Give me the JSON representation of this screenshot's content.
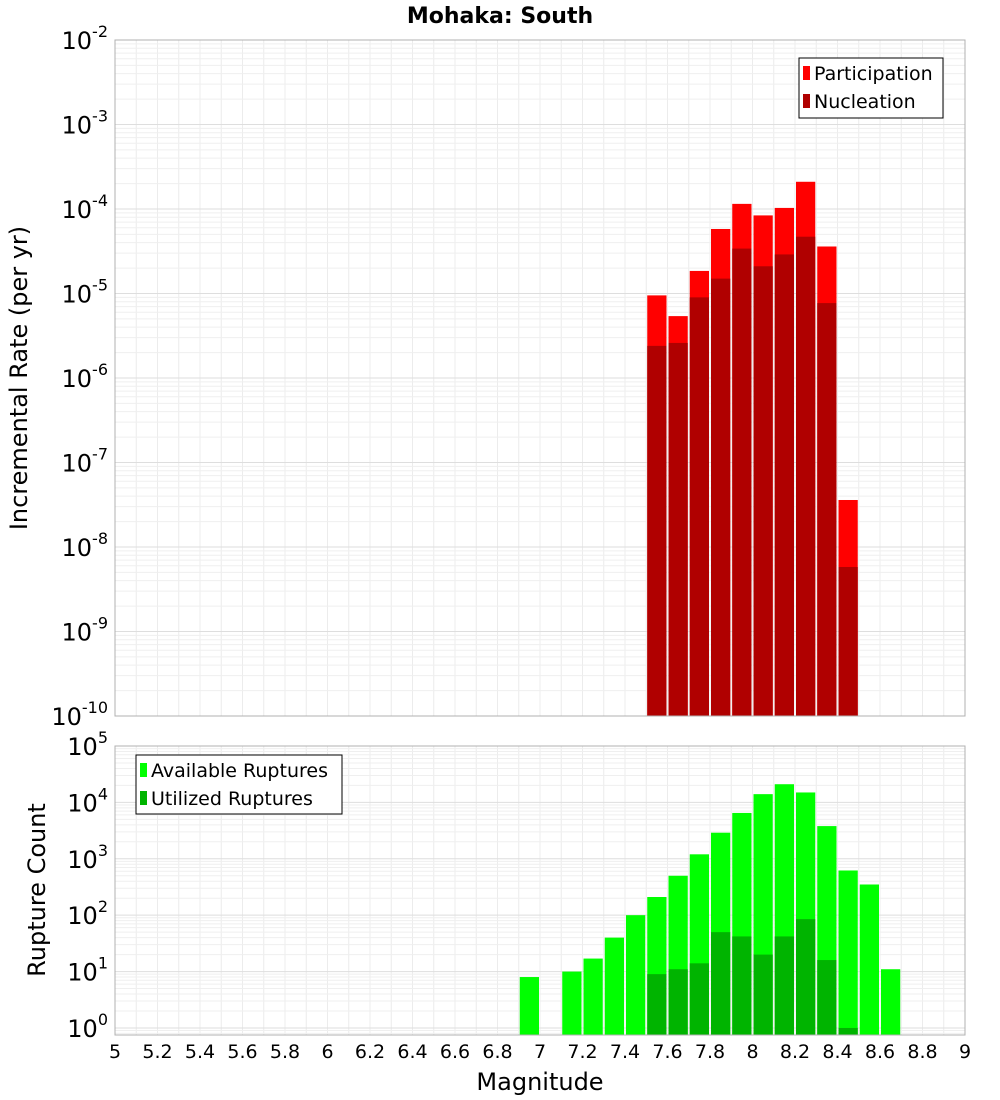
{
  "chart_data": [
    {
      "type": "bar",
      "title": "Mohaka: South",
      "ylabel": "Incremental Rate (per yr)",
      "xlabel": "",
      "yscale": "log",
      "xlim": [
        5,
        9
      ],
      "ylim": [
        1e-10,
        0.01
      ],
      "y_ticks": [
        {
          "base": "10",
          "exp": "-2"
        },
        {
          "base": "10",
          "exp": "-3"
        },
        {
          "base": "10",
          "exp": "-4"
        },
        {
          "base": "10",
          "exp": "-5"
        },
        {
          "base": "10",
          "exp": "-6"
        },
        {
          "base": "10",
          "exp": "-7"
        },
        {
          "base": "10",
          "exp": "-8"
        },
        {
          "base": "10",
          "exp": "-9"
        },
        {
          "base": "10",
          "exp": "-10"
        }
      ],
      "grid": true,
      "legend_position": "top-right",
      "bin_width": 0.1,
      "series": [
        {
          "name": "Participation",
          "color": "#ff0000",
          "x": [
            7.55,
            7.65,
            7.75,
            7.85,
            7.95,
            8.05,
            8.15,
            8.25,
            8.35,
            8.45
          ],
          "values": [
            9.5e-06,
            5.4e-06,
            1.85e-05,
            5.8e-05,
            0.000115,
            8.4e-05,
            0.000103,
            0.00021,
            3.6e-05,
            3.6e-08
          ]
        },
        {
          "name": "Nucleation",
          "color": "#b00000",
          "x": [
            7.55,
            7.65,
            7.75,
            7.85,
            7.95,
            8.05,
            8.15,
            8.25,
            8.35,
            8.45
          ],
          "values": [
            2.4e-06,
            2.6e-06,
            9e-06,
            1.5e-05,
            3.4e-05,
            2.1e-05,
            2.9e-05,
            4.7e-05,
            7.7e-06,
            5.8e-09
          ]
        }
      ]
    },
    {
      "type": "bar",
      "title": "",
      "ylabel": "Rupture Count",
      "xlabel": "Magnitude",
      "yscale": "log",
      "xlim": [
        5,
        9
      ],
      "ylim": [
        0.75,
        100000.0
      ],
      "y_ticks": [
        {
          "base": "10",
          "exp": "5"
        },
        {
          "base": "10",
          "exp": "4"
        },
        {
          "base": "10",
          "exp": "3"
        },
        {
          "base": "10",
          "exp": "2"
        },
        {
          "base": "10",
          "exp": "1"
        },
        {
          "base": "10",
          "exp": "0"
        }
      ],
      "x_ticks": [
        "5",
        "5.2",
        "5.4",
        "5.6",
        "5.8",
        "6",
        "6.2",
        "6.4",
        "6.6",
        "6.8",
        "7",
        "7.2",
        "7.4",
        "7.6",
        "7.8",
        "8",
        "8.2",
        "8.4",
        "8.6",
        "8.8",
        "9"
      ],
      "grid": true,
      "legend_position": "top-left",
      "bin_width": 0.1,
      "series": [
        {
          "name": "Available Ruptures",
          "color": "#00ff00",
          "x": [
            6.95,
            7.15,
            7.25,
            7.35,
            7.45,
            7.55,
            7.65,
            7.75,
            7.85,
            7.95,
            8.05,
            8.15,
            8.25,
            8.35,
            8.45,
            8.55,
            8.65
          ],
          "values": [
            8,
            10,
            17,
            40,
            100,
            210,
            500,
            1200,
            2900,
            6500,
            14000,
            21000,
            15000,
            3800,
            620,
            350,
            11
          ]
        },
        {
          "name": "Utilized Ruptures",
          "color": "#00b400",
          "x": [
            7.55,
            7.65,
            7.75,
            7.85,
            7.95,
            8.05,
            8.15,
            8.25,
            8.35,
            8.45
          ],
          "values": [
            9,
            11,
            14,
            50,
            42,
            20,
            42,
            85,
            16,
            1
          ]
        }
      ]
    }
  ]
}
